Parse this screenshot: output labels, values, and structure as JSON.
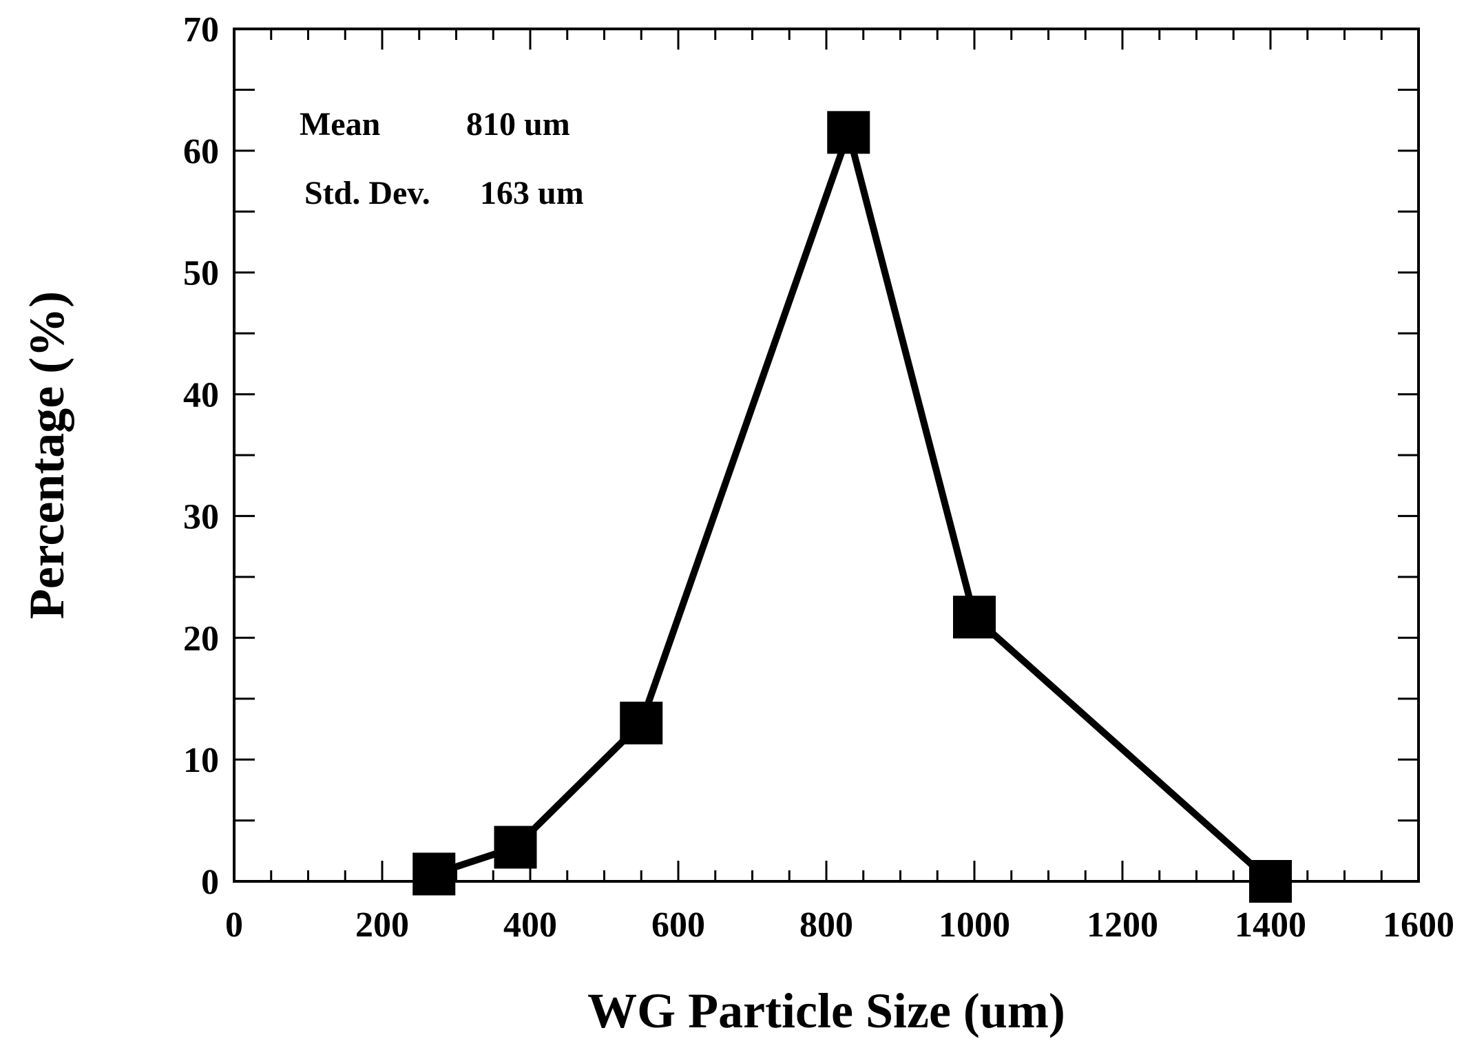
{
  "chart_data": {
    "type": "line",
    "title": "",
    "xlabel": "WG Particle Size (um)",
    "ylabel": "Percentage (%)",
    "xlim": [
      0,
      1600
    ],
    "ylim": [
      0,
      70
    ],
    "x_ticks": [
      0,
      200,
      400,
      600,
      800,
      1000,
      1200,
      1400,
      1600
    ],
    "y_ticks": [
      0,
      10,
      20,
      30,
      40,
      50,
      60,
      70
    ],
    "x_minor_step": 50,
    "y_minor_step": 5,
    "grid": false,
    "marker": "square",
    "series": [
      {
        "x": [
          270,
          380,
          550,
          830,
          1000,
          1400
        ],
        "y": [
          0.6,
          2.8,
          13.0,
          61.5,
          21.7,
          0.0
        ]
      }
    ],
    "annotations": [
      {
        "label": "Mean",
        "value": "810 um"
      },
      {
        "label": "Std. Dev.",
        "value": "163 um"
      }
    ]
  },
  "colors": {
    "line": "#000000",
    "marker": "#000000",
    "axis": "#000000",
    "background": "#ffffff"
  }
}
